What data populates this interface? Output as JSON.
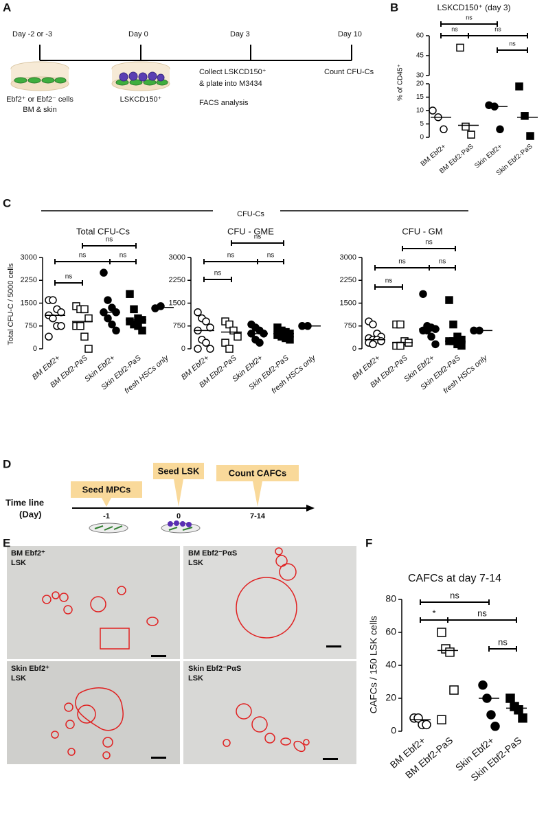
{
  "panel_labels": [
    "A",
    "B",
    "C",
    "D",
    "E",
    "F"
  ],
  "panel_a": {
    "days": [
      "Day -2 or -3",
      "Day 0",
      "Day 3",
      "Day 10"
    ],
    "cells_line1": "Ebf2⁺ or Ebf2⁻ cells",
    "cells_line2": "BM & skin",
    "day0_label": "LSKCD150⁺",
    "collect_line1": "Collect LSKCD150⁺",
    "collect_line2": "& plate into M3434",
    "facs": "FACS analysis",
    "count": "Count CFU-Cs"
  },
  "panel_c": {
    "title": "CFU-Cs",
    "y_label": "Total CFU-C / 5000 cells"
  },
  "chart_data": [
    {
      "type": "dot",
      "title": "LSKCD150⁺ (day 3)",
      "y_label": "% of CD45⁺",
      "segments": [
        {
          "ylim": [
            0,
            20
          ],
          "yticks": [
            0,
            5,
            10,
            15,
            20
          ]
        },
        {
          "ylim": [
            30,
            60
          ],
          "yticks": [
            30,
            45,
            60
          ]
        }
      ],
      "series": [
        {
          "name": "BM Ebf2+",
          "marker": "open-circle",
          "values": [
            10,
            7.5,
            3
          ],
          "median": 7.5
        },
        {
          "name": "BM Ebf2-PaS",
          "marker": "open-square",
          "values": [
            51,
            4,
            1
          ],
          "median": 4.5
        },
        {
          "name": "Skin Ebf2+",
          "marker": "filled-circle",
          "values": [
            12,
            11.5,
            3
          ],
          "median": 11.5
        },
        {
          "name": "Skin Ebf2-PaS",
          "marker": "filled-square",
          "values": [
            19,
            8,
            0.5
          ],
          "median": 7.5
        }
      ],
      "brackets": [
        {
          "from": 0,
          "to": 2,
          "label": "ns"
        },
        {
          "from": 0,
          "to": 1,
          "label": "ns"
        },
        {
          "from": 1,
          "to": 3,
          "label": "ns"
        },
        {
          "from": 2,
          "to": 3,
          "label": "ns"
        }
      ]
    },
    {
      "type": "dot",
      "title": "Total CFU-Cs",
      "ylim": [
        0,
        3000
      ],
      "yticks": [
        0,
        750,
        1500,
        2250,
        3000
      ],
      "series": [
        {
          "name": "BM Ebf2+",
          "marker": "open-circle",
          "values": [
            1600,
            1600,
            1300,
            1200,
            1100,
            1000,
            750,
            750,
            400
          ],
          "median": 1100
        },
        {
          "name": "BM Ebf2-PaS",
          "marker": "open-square",
          "values": [
            1400,
            1300,
            1300,
            1000,
            750,
            750,
            400,
            0
          ],
          "median": 900
        },
        {
          "name": "Skin Ebf2+",
          "marker": "filled-circle",
          "values": [
            2500,
            1600,
            1350,
            1200,
            1200,
            1000,
            800,
            600
          ],
          "median": 1200
        },
        {
          "name": "Skin Ebf2-PaS",
          "marker": "filled-square",
          "values": [
            1800,
            1300,
            1000,
            950,
            900,
            800,
            750,
            600
          ],
          "median": 950
        },
        {
          "name": "fresh HSCs only",
          "marker": "filled-circle",
          "values": [
            1330,
            1400
          ],
          "median": 1360
        }
      ],
      "brackets": [
        {
          "from": 1,
          "to": 3,
          "label": "ns"
        },
        {
          "from": 0,
          "to": 2,
          "label": "ns"
        },
        {
          "from": 2,
          "to": 3,
          "label": "ns"
        },
        {
          "from": 0,
          "to": 1,
          "label": "ns"
        }
      ]
    },
    {
      "type": "dot",
      "title": "CFU - GME",
      "ylim": [
        0,
        3000
      ],
      "yticks": [
        0,
        750,
        1500,
        2250,
        3000
      ],
      "series": [
        {
          "name": "BM Ebf2+",
          "marker": "open-circle",
          "values": [
            1200,
            1000,
            900,
            700,
            600,
            300,
            200,
            0,
            0
          ],
          "median": 600
        },
        {
          "name": "BM Ebf2-PaS",
          "marker": "open-square",
          "values": [
            900,
            800,
            600,
            400,
            200,
            0
          ],
          "median": 550
        },
        {
          "name": "Skin Ebf2+",
          "marker": "filled-circle",
          "values": [
            800,
            700,
            600,
            500,
            500,
            300,
            200
          ],
          "median": 500
        },
        {
          "name": "Skin Ebf2-PaS",
          "marker": "filled-square",
          "values": [
            700,
            600,
            550,
            500,
            450,
            400,
            350,
            300
          ],
          "median": 500
        },
        {
          "name": "fresh HSCs only",
          "marker": "filled-circle",
          "values": [
            750,
            750
          ],
          "median": 750
        }
      ],
      "brackets": [
        {
          "from": 1,
          "to": 3,
          "label": "ns"
        },
        {
          "from": 0,
          "to": 2,
          "label": "ns"
        },
        {
          "from": 2,
          "to": 3,
          "label": "ns"
        },
        {
          "from": 0,
          "to": 1,
          "label": "ns"
        }
      ]
    },
    {
      "type": "dot",
      "title": "CFU - GM",
      "ylim": [
        0,
        3000
      ],
      "yticks": [
        0,
        750,
        1500,
        2250,
        3000
      ],
      "series": [
        {
          "name": "BM Ebf2+",
          "marker": "open-circle",
          "values": [
            900,
            800,
            500,
            400,
            350,
            300,
            300,
            250,
            200,
            150
          ],
          "median": 300
        },
        {
          "name": "BM Ebf2-PaS",
          "marker": "open-square",
          "values": [
            800,
            800,
            250,
            200,
            100,
            100
          ],
          "median": 200
        },
        {
          "name": "Skin Ebf2+",
          "marker": "filled-circle",
          "values": [
            1800,
            750,
            700,
            650,
            600,
            600,
            400,
            150
          ],
          "median": 650
        },
        {
          "name": "Skin Ebf2-PaS",
          "marker": "filled-square",
          "values": [
            1600,
            800,
            400,
            300,
            250,
            250,
            150,
            100
          ],
          "median": 250
        },
        {
          "name": "fresh HSCs only",
          "marker": "filled-circle",
          "values": [
            600,
            600
          ],
          "median": 600
        }
      ],
      "brackets": [
        {
          "from": 1,
          "to": 3,
          "label": "ns"
        },
        {
          "from": 0,
          "to": 2,
          "label": "ns"
        },
        {
          "from": 2,
          "to": 3,
          "label": "ns"
        },
        {
          "from": 0,
          "to": 1,
          "label": "ns"
        }
      ]
    },
    {
      "type": "dot",
      "title": "CAFCs at day 7-14",
      "y_label": "CAFCs  / 150 LSK cells",
      "ylim": [
        0,
        80
      ],
      "yticks": [
        0,
        20,
        40,
        60,
        80
      ],
      "series": [
        {
          "name": "BM Ebf2+",
          "marker": "open-circle",
          "values": [
            8,
            8,
            4,
            4
          ],
          "median": 7
        },
        {
          "name": "BM Ebf2-PaS",
          "marker": "open-square",
          "values": [
            60,
            50,
            48,
            25,
            7
          ],
          "median": 49
        },
        {
          "name": "Skin Ebf2+",
          "marker": "filled-circle",
          "values": [
            28,
            20,
            10,
            3
          ],
          "median": 20
        },
        {
          "name": "Skin Ebf2-PaS",
          "marker": "filled-square",
          "values": [
            20,
            15,
            13,
            8
          ],
          "median": 14
        }
      ],
      "brackets": [
        {
          "from": 0,
          "to": 2,
          "label": "ns"
        },
        {
          "from": 0,
          "to": 1,
          "label": "*"
        },
        {
          "from": 1,
          "to": 3,
          "label": "ns"
        },
        {
          "from": 2,
          "to": 3,
          "label": "ns"
        }
      ]
    }
  ],
  "panel_d": {
    "axis_line1": "Time line",
    "axis_line2": "(Day)",
    "steps": [
      {
        "label": "Seed MPCs",
        "day": "-1"
      },
      {
        "label": "Seed LSK",
        "day": "0"
      },
      {
        "label": "Count CAFCs",
        "day": "7-14"
      }
    ]
  },
  "panel_e": {
    "images": [
      {
        "label": "BM Ebf2⁺",
        "sublabel": "LSK"
      },
      {
        "label": "BM Ebf2⁻PαS",
        "sublabel": "LSK"
      },
      {
        "label": "Skin Ebf2⁺",
        "sublabel": "LSK"
      },
      {
        "label": "Skin Ebf2⁻PαS",
        "sublabel": "LSK"
      }
    ]
  }
}
